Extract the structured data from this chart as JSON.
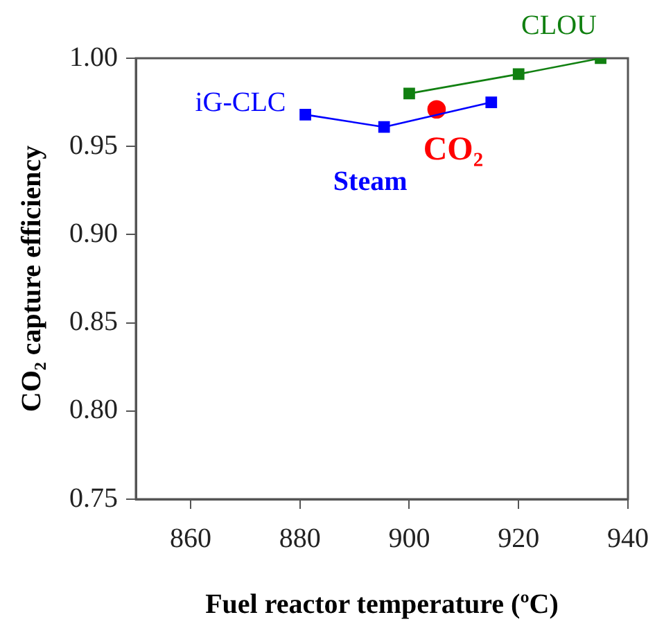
{
  "chart_data": {
    "type": "line",
    "xlabel": "Fuel reactor temperature (ºC)",
    "ylabel": "CO₂ capture efficiency",
    "xlim": [
      850,
      940
    ],
    "xticks": [
      860,
      880,
      900,
      920,
      940
    ],
    "ylim": [
      0.75,
      1.0
    ],
    "yticks": [
      {
        "value": 0.75,
        "label": "0.75"
      },
      {
        "value": 0.8,
        "label": "0.80"
      },
      {
        "value": 0.85,
        "label": "0.85"
      },
      {
        "value": 0.9,
        "label": "0.90"
      },
      {
        "value": 0.95,
        "label": "0.95"
      },
      {
        "value": 1.0,
        "label": "1.00"
      }
    ],
    "grid": false,
    "legend": false,
    "annotations": [
      "iG-CLC"
    ],
    "series": [
      {
        "name": "Steam",
        "marker": "square",
        "color": "#0000ff",
        "x": [
          881,
          895.4,
          915
        ],
        "values": [
          0.968,
          0.961,
          0.975
        ]
      },
      {
        "name": "CO₂",
        "type": "scatter",
        "marker": "circle",
        "color": "#ff0000",
        "x": [
          905
        ],
        "values": [
          0.971
        ]
      },
      {
        "name": "CLOU",
        "marker": "square",
        "color": "#118011",
        "x": [
          900,
          920,
          935
        ],
        "values": [
          0.98,
          0.991,
          1.0
        ]
      }
    ]
  }
}
